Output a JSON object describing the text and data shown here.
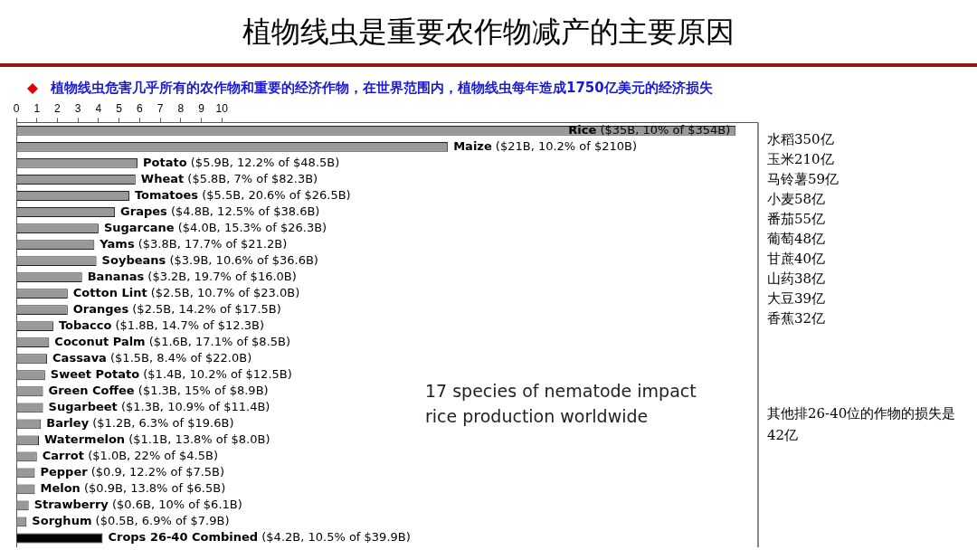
{
  "chart_data": {
    "type": "bar",
    "orientation": "horizontal",
    "title": "植物线虫是重要农作物减产的主要原因",
    "subtitle": "植物线虫危害几乎所有的农作物和重要的经济作物，在世界范围内，植物线虫每年造成1750亿美元的经济损失",
    "categories": [
      "Rice ($35B, 10% of $354B)",
      "Maize ($21B, 10.2% of $210B)",
      "Potato ($5.9B, 12.2% of $48.5B)",
      "Wheat ($5.8B, 7% of $82.3B)",
      "Tomatoes ($5.5B, 20.6% of $26.5B)",
      "Grapes ($4.8B, 12.5% of $38.6B)",
      "Sugarcane ($4.0B, 15.3% of $26.3B)",
      "Yams ($3.8B, 17.7% of $21.2B)",
      "Soybeans ($3.9B, 10.6% of $36.6B)",
      "Bananas ($3.2B, 19.7% of $16.0B)",
      "Cotton Lint ($2.5B, 10.7% of $23.0B)",
      "Oranges ($2.5B, 14.2% of $17.5B)",
      "Tobacco ($1.8B, 14.7% of $12.3B)",
      "Coconut Palm ($1.6B, 17.1% of $8.5B)",
      "Cassava ($1.5B, 8.4% of $22.0B)",
      "Sweet Potato ($1.4B, 10.2% of $12.5B)",
      "Green Coffee ($1.3B, 15% of $8.9B)",
      "Sugarbeet ($1.3B, 10.9% of $11.4B)",
      "Barley ($1.2B, 6.3% of $19.6B)",
      "Watermelon ($1.1B, 13.8% of $8.0B)",
      "Carrot ($1.0B, 22% of $4.5B)",
      "Pepper ($0.9, 12.2% of $7.5B)",
      "Melon ($0.9B, 13.8% of $6.5B)",
      "Strawberry ($0.6B, 10% of $6.1B)",
      "Sorghum ($0.5B, 6.9% of $7.9B)",
      "Crops 26-40 Combined ($4.2B, 10.5% of $39.9B)"
    ],
    "values": [
      35,
      21,
      5.9,
      5.8,
      5.5,
      4.8,
      4.0,
      3.8,
      3.9,
      3.2,
      2.5,
      2.5,
      1.8,
      1.6,
      1.5,
      1.4,
      1.3,
      1.3,
      1.2,
      1.1,
      1.0,
      0.9,
      0.9,
      0.6,
      0.5,
      4.2
    ],
    "colors": [
      "#999999",
      "#999999",
      "#999999",
      "#999999",
      "#999999",
      "#999999",
      "#999999",
      "#999999",
      "#999999",
      "#999999",
      "#999999",
      "#999999",
      "#999999",
      "#999999",
      "#999999",
      "#999999",
      "#999999",
      "#999999",
      "#999999",
      "#999999",
      "#999999",
      "#999999",
      "#999999",
      "#999999",
      "#999999",
      "#000000"
    ],
    "xlim": [
      0,
      36
    ],
    "xticks": [
      0,
      1,
      2,
      3,
      4,
      5,
      6,
      7,
      8,
      9,
      10
    ],
    "tick_labels": "x",
    "grid": false,
    "legend": false,
    "annotations": [
      "17 species of nematode impact rice production worldwide",
      "水稻350亿",
      "玉米210亿",
      "马铃薯59亿",
      "小麦58亿",
      "番茄55亿",
      "葡萄48亿",
      "甘蔗40亿",
      "山药38亿",
      "大豆39亿",
      "香蕉32亿",
      "其他排26-40位的作物的损失是42亿"
    ]
  }
}
